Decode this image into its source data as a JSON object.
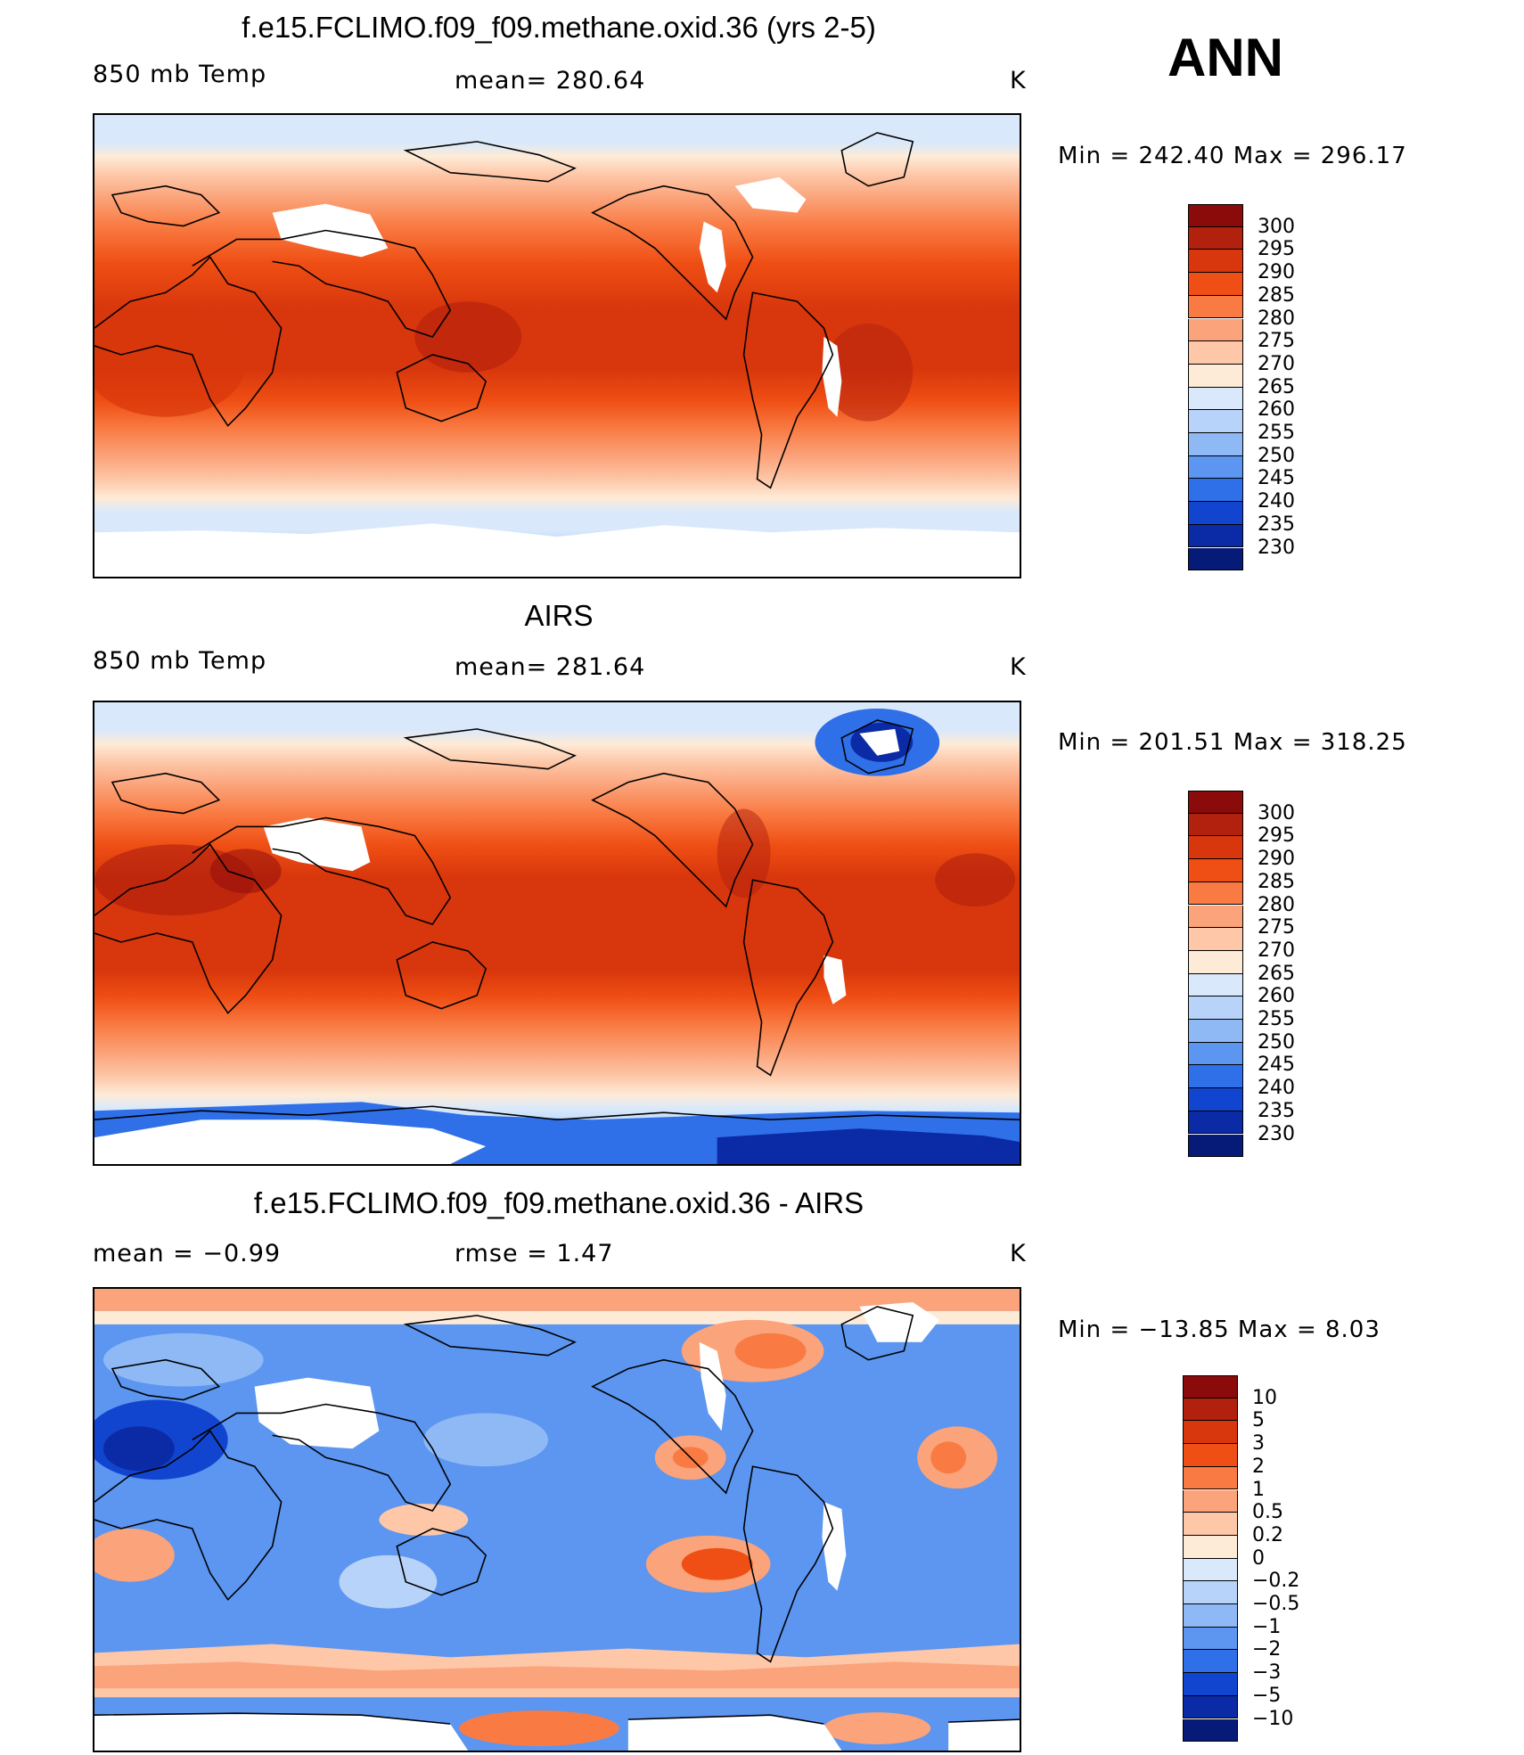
{
  "season": "ANN",
  "panels": [
    {
      "title": "f.e15.FCLIMO.f09_f09.methane.oxid.36 (yrs 2-5)",
      "left_label": "850 mb Temp",
      "center_label": "mean=  280.64",
      "units": "K",
      "minmax": "Min  =  242.40  Max  =  296.17",
      "palette": "temp"
    },
    {
      "title": "AIRS",
      "left_label": "850 mb Temp",
      "center_label": "mean=  281.64",
      "units": "K",
      "minmax": "Min  =  201.51  Max  =  318.25",
      "palette": "temp"
    },
    {
      "title": "f.e15.FCLIMO.f09_f09.methane.oxid.36 - AIRS",
      "left_label": "mean  =    −0.99",
      "center_label": "rmse  =     1.47",
      "units": "K",
      "minmax": "Min  =  −13.85  Max  =      8.03",
      "palette": "diff"
    }
  ],
  "colorbars": {
    "temp": {
      "labels": [
        "300",
        "295",
        "290",
        "285",
        "280",
        "275",
        "270",
        "265",
        "260",
        "255",
        "250",
        "245",
        "240",
        "235",
        "230"
      ],
      "colors": [
        "#8b0a0a",
        "#b2200e",
        "#d8360c",
        "#ef4f14",
        "#f97b43",
        "#fba37a",
        "#fdc7a8",
        "#feebd7",
        "#d9e9fb",
        "#b8d3f9",
        "#8eb9f5",
        "#5c96f0",
        "#2f6fe8",
        "#1245cf",
        "#0b2ba6",
        "#061a78"
      ]
    },
    "diff": {
      "labels": [
        "10",
        "5",
        "3",
        "2",
        "1",
        "0.5",
        "0.2",
        "0",
        "−0.2",
        "−0.5",
        "−1",
        "−2",
        "−3",
        "−5",
        "−10"
      ],
      "colors": [
        "#8b0a0a",
        "#b2200e",
        "#d8360c",
        "#ef4f14",
        "#f97b43",
        "#fba37a",
        "#fdc7a8",
        "#feebd7",
        "#d9e9fb",
        "#b8d3f9",
        "#8eb9f5",
        "#5c96f0",
        "#2f6fe8",
        "#1245cf",
        "#0b2ba6",
        "#061a78"
      ]
    }
  }
}
